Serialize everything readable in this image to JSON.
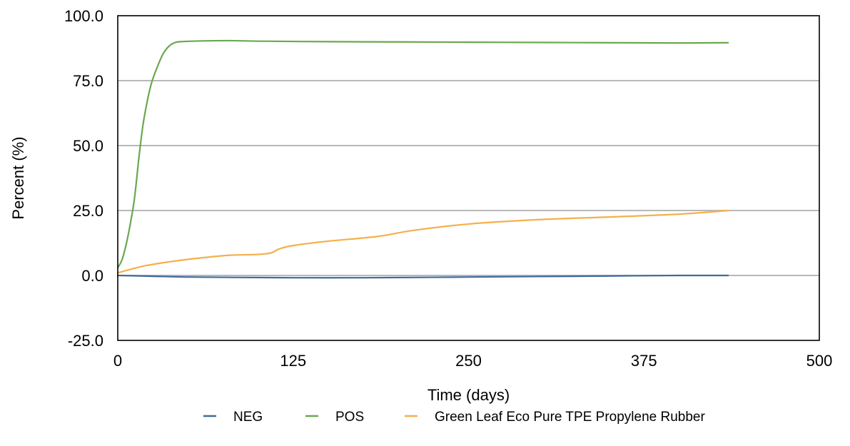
{
  "chart_data": {
    "type": "line",
    "title": "",
    "xlabel": "Time (days)",
    "ylabel": "Percent (%)",
    "xlim": [
      0,
      500
    ],
    "ylim": [
      -25,
      100
    ],
    "x_ticks": [
      0,
      125,
      250,
      375,
      500
    ],
    "y_ticks": [
      -25,
      0,
      25,
      50,
      75,
      100
    ],
    "x_tick_labels": [
      "0",
      "125",
      "250",
      "375",
      "500"
    ],
    "y_tick_labels": [
      "-25.0",
      "0.0",
      "25.0",
      "50.0",
      "75.0",
      "100.0"
    ],
    "grid": "horizontal",
    "legend_position": "bottom",
    "series": [
      {
        "name": "NEG",
        "color": "#3f6c9a",
        "points": [
          [
            0,
            0.0
          ],
          [
            25,
            -0.3
          ],
          [
            50,
            -0.6
          ],
          [
            100,
            -0.8
          ],
          [
            150,
            -0.9
          ],
          [
            200,
            -0.8
          ],
          [
            250,
            -0.6
          ],
          [
            300,
            -0.4
          ],
          [
            350,
            -0.2
          ],
          [
            400,
            0.0
          ],
          [
            435,
            0.0
          ]
        ]
      },
      {
        "name": "POS",
        "color": "#6aa84f",
        "points": [
          [
            0,
            3.0
          ],
          [
            3,
            6.0
          ],
          [
            6,
            12.0
          ],
          [
            9,
            20.0
          ],
          [
            12,
            30.0
          ],
          [
            15,
            45.0
          ],
          [
            18,
            58.0
          ],
          [
            21,
            67.0
          ],
          [
            24,
            74.0
          ],
          [
            28,
            80.0
          ],
          [
            32,
            85.0
          ],
          [
            36,
            88.0
          ],
          [
            40,
            89.5
          ],
          [
            45,
            90.0
          ],
          [
            60,
            90.3
          ],
          [
            80,
            90.4
          ],
          [
            100,
            90.2
          ],
          [
            150,
            90.0
          ],
          [
            200,
            89.9
          ],
          [
            250,
            89.8
          ],
          [
            300,
            89.7
          ],
          [
            350,
            89.6
          ],
          [
            400,
            89.5
          ],
          [
            435,
            89.6
          ]
        ]
      },
      {
        "name": "Green Leaf Eco Pure TPE Propylene Rubber",
        "color": "#f4b04b",
        "points": [
          [
            0,
            1.0
          ],
          [
            10,
            2.5
          ],
          [
            20,
            3.8
          ],
          [
            40,
            5.5
          ],
          [
            60,
            6.8
          ],
          [
            80,
            7.8
          ],
          [
            95,
            8.0
          ],
          [
            105,
            8.3
          ],
          [
            110,
            8.8
          ],
          [
            115,
            10.2
          ],
          [
            125,
            11.5
          ],
          [
            150,
            13.2
          ],
          [
            185,
            15.0
          ],
          [
            210,
            17.3
          ],
          [
            250,
            19.8
          ],
          [
            300,
            21.5
          ],
          [
            350,
            22.5
          ],
          [
            400,
            23.6
          ],
          [
            435,
            25.0
          ]
        ]
      }
    ]
  }
}
